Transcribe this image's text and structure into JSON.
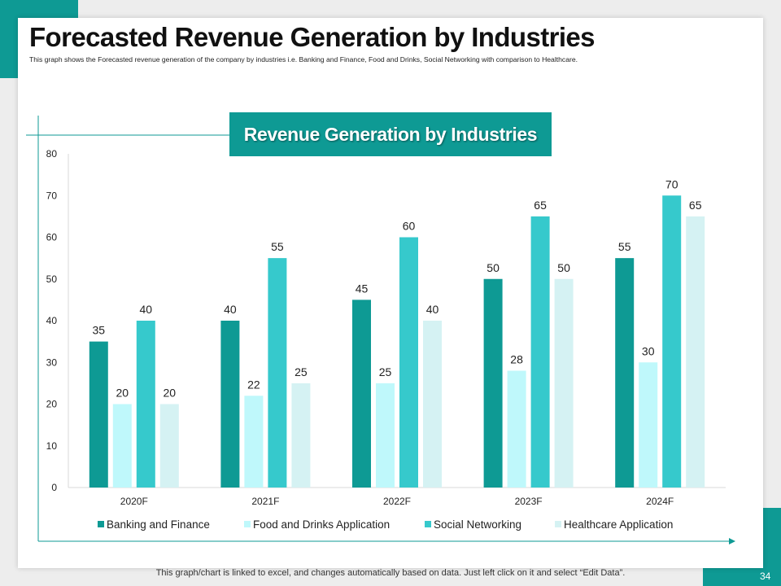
{
  "slide": {
    "title": "Forecasted Revenue Generation by Industries",
    "subtitle": "This graph shows the Forecasted revenue generation of the company by industries i.e. Banking and Finance, Food and Drinks, Social Networking with comparison to Healthcare.",
    "footer": "This graph/chart is linked to excel, and changes automatically based on data. Just left click on it and select “Edit Data”.",
    "page_number": "34",
    "accent_color": "#0e9a94"
  },
  "chart_data": {
    "type": "bar",
    "title": "Revenue Generation by Industries",
    "categories": [
      "2020F",
      "2021F",
      "2022F",
      "2023F",
      "2024F"
    ],
    "series": [
      {
        "name": "Banking and Finance",
        "color": "#0e9a94",
        "values": [
          35,
          40,
          45,
          50,
          55
        ]
      },
      {
        "name": "Food and Drinks Application",
        "color": "#bff8fb",
        "values": [
          20,
          22,
          25,
          28,
          30
        ]
      },
      {
        "name": "Social Networking",
        "color": "#36c9cc",
        "values": [
          40,
          55,
          60,
          65,
          70
        ]
      },
      {
        "name": "Healthcare Application",
        "color": "#d5f2f3",
        "values": [
          20,
          25,
          40,
          50,
          65
        ]
      }
    ],
    "yticks": [
      0,
      10,
      20,
      30,
      40,
      50,
      60,
      70,
      80
    ],
    "ylim": [
      0,
      80
    ],
    "xlabel": "",
    "ylabel": "",
    "grid": false,
    "legend": "bottom"
  }
}
